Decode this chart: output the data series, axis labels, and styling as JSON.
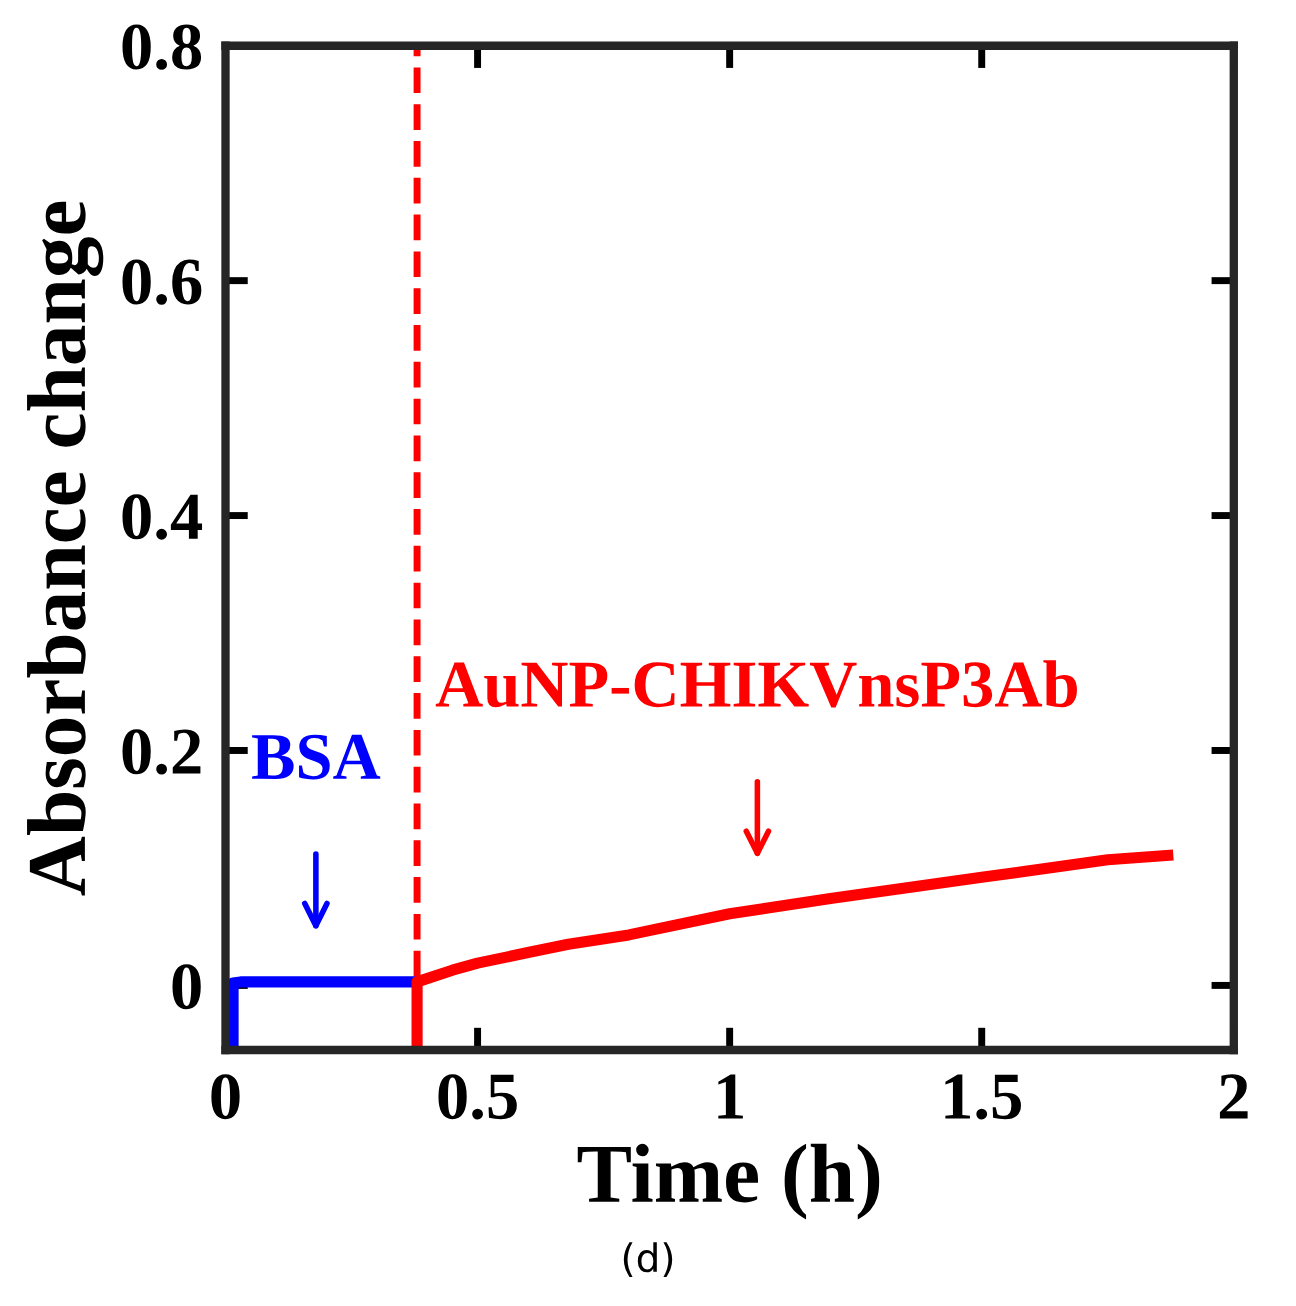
{
  "chart_data": {
    "type": "line",
    "xlabel": "Time (h)",
    "ylabel": "Absorbance change",
    "series": [
      {
        "color": "#0000ff",
        "x": [
          0.015,
          0.015,
          0.03,
          0.1,
          0.2,
          0.3,
          0.38
        ],
        "values": [
          -0.055,
          0.002,
          0.003,
          0.003,
          0.003,
          0.003,
          0.003
        ]
      },
      {
        "color": "#ff0000",
        "x": [
          0.38,
          0.38,
          0.45,
          0.5,
          0.6,
          0.68,
          0.8,
          1.0,
          1.2,
          1.5,
          1.75,
          1.88
        ],
        "values": [
          -0.055,
          0.003,
          0.013,
          0.019,
          0.028,
          0.035,
          0.043,
          0.061,
          0.074,
          0.092,
          0.107,
          0.111
        ]
      }
    ],
    "annotations": [
      "BSA",
      "AuNP-CHIKVnsP3Ab",
      "(d)"
    ],
    "ref_lines": [
      {
        "axis": "x",
        "value": 0.38,
        "color": "#ff0000",
        "line_style": "dashed"
      }
    ],
    "xlim": [
      0,
      2
    ],
    "ylim": [
      -0.055,
      0.8
    ],
    "xticks": [
      0,
      0.5,
      1,
      1.5,
      2
    ],
    "yticks": [
      0,
      0.2,
      0.4,
      0.6,
      0.8
    ],
    "grid": false,
    "legend": false,
    "line_style": "solid",
    "marker": "none"
  }
}
